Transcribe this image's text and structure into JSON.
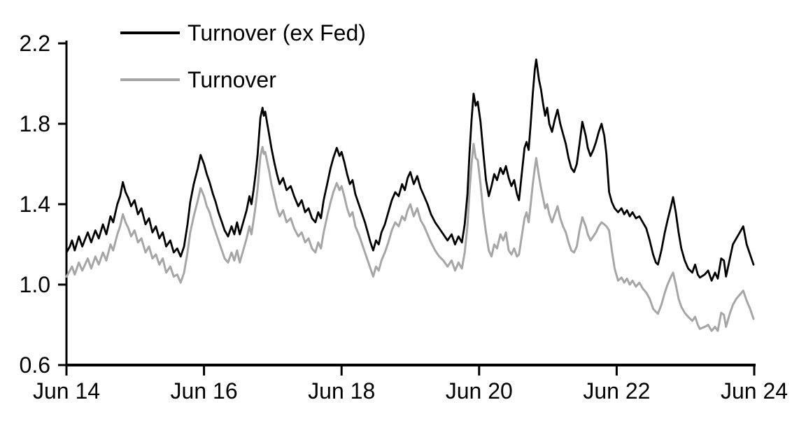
{
  "chart_data": {
    "type": "line",
    "title": "",
    "xlabel": "",
    "ylabel": "",
    "grid": false,
    "background": "#ffffff",
    "axis_color": "#000000",
    "x_axis": {
      "tick_labels": [
        "Jun 14",
        "Jun 16",
        "Jun 18",
        "Jun 20",
        "Jun 22",
        "Jun 24"
      ],
      "tick_t": [
        0,
        2,
        4,
        6,
        8,
        10
      ],
      "range_t": [
        0,
        10
      ]
    },
    "y_axis": {
      "tick_labels": [
        "0.6",
        "1.0",
        "1.4",
        "1.8",
        "2.2"
      ],
      "tick_values": [
        0.6,
        1.0,
        1.4,
        1.8,
        2.2
      ],
      "range": [
        0.6,
        2.2
      ]
    },
    "legend": {
      "position": "top-left",
      "entries": [
        {
          "label": "Turnover (ex Fed)",
          "color": "#000000"
        },
        {
          "label": "Turnover",
          "color": "#a6a6a6"
        }
      ]
    },
    "t_years_since_jun14": [
      0.0,
      0.05,
      0.08,
      0.12,
      0.18,
      0.23,
      0.31,
      0.36,
      0.42,
      0.47,
      0.53,
      0.58,
      0.64,
      0.68,
      0.74,
      0.78,
      0.82,
      0.86,
      0.9,
      0.94,
      0.99,
      1.04,
      1.09,
      1.15,
      1.2,
      1.25,
      1.3,
      1.35,
      1.4,
      1.45,
      1.51,
      1.56,
      1.61,
      1.66,
      1.71,
      1.76,
      1.8,
      1.85,
      1.91,
      1.95,
      2.0,
      2.04,
      2.08,
      2.13,
      2.17,
      2.21,
      2.26,
      2.3,
      2.35,
      2.4,
      2.44,
      2.48,
      2.52,
      2.57,
      2.62,
      2.66,
      2.69,
      2.72,
      2.75,
      2.78,
      2.8,
      2.82,
      2.85,
      2.87,
      2.89,
      2.92,
      2.95,
      2.98,
      3.02,
      3.06,
      3.1,
      3.15,
      3.2,
      3.26,
      3.31,
      3.37,
      3.42,
      3.47,
      3.52,
      3.57,
      3.62,
      3.66,
      3.7,
      3.74,
      3.79,
      3.84,
      3.88,
      3.93,
      3.97,
      4.0,
      4.04,
      4.08,
      4.12,
      4.16,
      4.2,
      4.25,
      4.3,
      4.34,
      4.38,
      4.42,
      4.46,
      4.5,
      4.54,
      4.58,
      4.63,
      4.68,
      4.73,
      4.78,
      4.83,
      4.88,
      4.92,
      4.96,
      5.0,
      5.05,
      5.1,
      5.15,
      5.2,
      5.25,
      5.3,
      5.36,
      5.42,
      5.48,
      5.54,
      5.6,
      5.65,
      5.7,
      5.75,
      5.79,
      5.83,
      5.86,
      5.89,
      5.92,
      5.95,
      5.98,
      6.02,
      6.06,
      6.1,
      6.14,
      6.18,
      6.22,
      6.26,
      6.31,
      6.35,
      6.39,
      6.43,
      6.47,
      6.51,
      6.55,
      6.58,
      6.62,
      6.66,
      6.69,
      6.72,
      6.75,
      6.78,
      6.81,
      6.83,
      6.87,
      6.9,
      6.93,
      6.96,
      6.99,
      7.02,
      7.06,
      7.1,
      7.14,
      7.18,
      7.22,
      7.26,
      7.3,
      7.34,
      7.38,
      7.42,
      7.46,
      7.5,
      7.55,
      7.58,
      7.62,
      7.66,
      7.7,
      7.74,
      7.78,
      7.82,
      7.85,
      7.89,
      7.93,
      7.97,
      8.02,
      8.07,
      8.11,
      8.15,
      8.19,
      8.23,
      8.28,
      8.33,
      8.38,
      8.43,
      8.48,
      8.53,
      8.57,
      8.6,
      8.65,
      8.7,
      8.74,
      8.79,
      8.82,
      8.86,
      8.9,
      8.94,
      8.99,
      9.04,
      9.1,
      9.14,
      9.18,
      9.21,
      9.28,
      9.33,
      9.38,
      9.43,
      9.47,
      9.52,
      9.56,
      9.59,
      9.64,
      9.69,
      9.74,
      9.79,
      9.84,
      9.89,
      9.94,
      9.99
    ],
    "series": [
      {
        "name": "Turnover (ex Fed)",
        "color": "#000000",
        "stroke_width": 2.8,
        "values": [
          1.16,
          1.19,
          1.22,
          1.17,
          1.24,
          1.19,
          1.26,
          1.21,
          1.27,
          1.23,
          1.3,
          1.25,
          1.34,
          1.31,
          1.4,
          1.44,
          1.51,
          1.46,
          1.43,
          1.39,
          1.42,
          1.35,
          1.38,
          1.3,
          1.33,
          1.26,
          1.29,
          1.23,
          1.26,
          1.19,
          1.22,
          1.16,
          1.18,
          1.14,
          1.19,
          1.3,
          1.41,
          1.5,
          1.58,
          1.645,
          1.6,
          1.55,
          1.51,
          1.45,
          1.41,
          1.36,
          1.31,
          1.27,
          1.24,
          1.29,
          1.25,
          1.31,
          1.25,
          1.31,
          1.37,
          1.44,
          1.4,
          1.47,
          1.55,
          1.65,
          1.74,
          1.83,
          1.88,
          1.84,
          1.86,
          1.8,
          1.74,
          1.68,
          1.61,
          1.55,
          1.5,
          1.53,
          1.47,
          1.49,
          1.44,
          1.39,
          1.42,
          1.36,
          1.38,
          1.33,
          1.31,
          1.36,
          1.33,
          1.42,
          1.5,
          1.58,
          1.63,
          1.68,
          1.64,
          1.66,
          1.61,
          1.55,
          1.5,
          1.52,
          1.45,
          1.4,
          1.35,
          1.31,
          1.26,
          1.21,
          1.17,
          1.22,
          1.2,
          1.26,
          1.3,
          1.36,
          1.42,
          1.46,
          1.44,
          1.5,
          1.47,
          1.53,
          1.56,
          1.5,
          1.54,
          1.48,
          1.44,
          1.4,
          1.35,
          1.31,
          1.28,
          1.25,
          1.22,
          1.25,
          1.2,
          1.24,
          1.21,
          1.3,
          1.45,
          1.65,
          1.82,
          1.95,
          1.89,
          1.91,
          1.81,
          1.66,
          1.52,
          1.44,
          1.49,
          1.55,
          1.52,
          1.58,
          1.55,
          1.59,
          1.53,
          1.49,
          1.52,
          1.45,
          1.42,
          1.55,
          1.68,
          1.71,
          1.67,
          1.8,
          1.95,
          2.07,
          2.12,
          2.02,
          1.97,
          1.9,
          1.84,
          1.88,
          1.8,
          1.76,
          1.82,
          1.87,
          1.8,
          1.75,
          1.7,
          1.63,
          1.58,
          1.56,
          1.6,
          1.7,
          1.81,
          1.74,
          1.68,
          1.64,
          1.67,
          1.71,
          1.76,
          1.8,
          1.74,
          1.65,
          1.46,
          1.41,
          1.38,
          1.36,
          1.38,
          1.35,
          1.37,
          1.34,
          1.36,
          1.33,
          1.34,
          1.31,
          1.28,
          1.22,
          1.15,
          1.11,
          1.1,
          1.17,
          1.26,
          1.32,
          1.39,
          1.435,
          1.36,
          1.26,
          1.18,
          1.12,
          1.08,
          1.06,
          1.1,
          1.05,
          1.035,
          1.05,
          1.07,
          1.02,
          1.06,
          1.03,
          1.13,
          1.12,
          1.04,
          1.12,
          1.2,
          1.23,
          1.26,
          1.29,
          1.2,
          1.15,
          1.1
        ]
      },
      {
        "name": "Turnover",
        "color": "#a6a6a6",
        "stroke_width": 3,
        "values": [
          1.04,
          1.07,
          1.09,
          1.05,
          1.11,
          1.07,
          1.13,
          1.08,
          1.14,
          1.1,
          1.16,
          1.12,
          1.2,
          1.17,
          1.25,
          1.29,
          1.35,
          1.31,
          1.28,
          1.24,
          1.27,
          1.21,
          1.23,
          1.16,
          1.19,
          1.13,
          1.15,
          1.1,
          1.13,
          1.06,
          1.09,
          1.04,
          1.05,
          1.01,
          1.06,
          1.16,
          1.26,
          1.34,
          1.42,
          1.48,
          1.44,
          1.39,
          1.36,
          1.3,
          1.26,
          1.22,
          1.17,
          1.13,
          1.11,
          1.16,
          1.12,
          1.17,
          1.11,
          1.17,
          1.23,
          1.29,
          1.25,
          1.32,
          1.39,
          1.48,
          1.56,
          1.64,
          1.685,
          1.65,
          1.66,
          1.61,
          1.56,
          1.5,
          1.44,
          1.38,
          1.34,
          1.37,
          1.31,
          1.33,
          1.28,
          1.24,
          1.26,
          1.21,
          1.23,
          1.18,
          1.16,
          1.21,
          1.18,
          1.26,
          1.34,
          1.41,
          1.46,
          1.505,
          1.47,
          1.49,
          1.44,
          1.38,
          1.34,
          1.36,
          1.29,
          1.25,
          1.2,
          1.16,
          1.12,
          1.08,
          1.04,
          1.09,
          1.07,
          1.12,
          1.16,
          1.21,
          1.27,
          1.31,
          1.29,
          1.34,
          1.32,
          1.37,
          1.4,
          1.34,
          1.38,
          1.32,
          1.29,
          1.25,
          1.21,
          1.17,
          1.14,
          1.12,
          1.09,
          1.12,
          1.07,
          1.11,
          1.08,
          1.16,
          1.29,
          1.46,
          1.6,
          1.7,
          1.63,
          1.62,
          1.5,
          1.36,
          1.26,
          1.17,
          1.14,
          1.2,
          1.18,
          1.25,
          1.22,
          1.26,
          1.17,
          1.15,
          1.18,
          1.14,
          1.15,
          1.24,
          1.33,
          1.36,
          1.31,
          1.4,
          1.5,
          1.58,
          1.63,
          1.54,
          1.48,
          1.43,
          1.38,
          1.4,
          1.35,
          1.31,
          1.35,
          1.39,
          1.33,
          1.29,
          1.26,
          1.21,
          1.17,
          1.16,
          1.19,
          1.27,
          1.335,
          1.29,
          1.25,
          1.22,
          1.24,
          1.26,
          1.29,
          1.31,
          1.3,
          1.29,
          1.27,
          1.17,
          1.08,
          1.02,
          1.035,
          1.01,
          1.03,
          1.0,
          1.02,
          0.99,
          1.01,
          0.98,
          0.96,
          0.93,
          0.88,
          0.865,
          0.855,
          0.9,
          0.96,
          1.0,
          1.04,
          1.06,
          1.0,
          0.93,
          0.89,
          0.86,
          0.84,
          0.82,
          0.84,
          0.8,
          0.78,
          0.79,
          0.8,
          0.77,
          0.79,
          0.77,
          0.86,
          0.85,
          0.79,
          0.85,
          0.9,
          0.93,
          0.95,
          0.97,
          0.92,
          0.88,
          0.83
        ]
      }
    ]
  }
}
